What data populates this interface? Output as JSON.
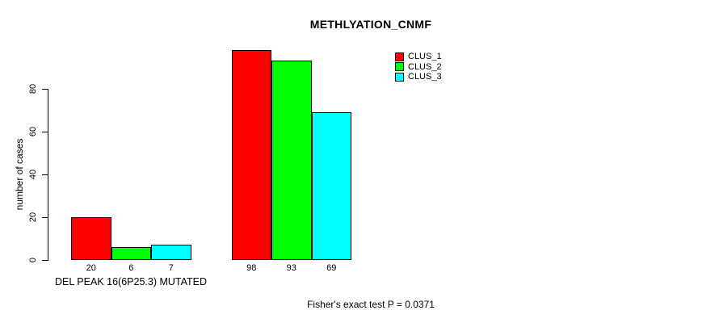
{
  "chart_data": {
    "type": "bar",
    "title": "METHLYATION_CNMF",
    "ylabel": "number of cases",
    "xlabel": "DEL PEAK 16(6P25.3) MUTATED",
    "footnote": "Fisher's exact test P = 0.0371",
    "ylim": [
      0,
      100
    ],
    "yticks": [
      0,
      20,
      40,
      60,
      80
    ],
    "grid": false,
    "legend_position": "inside-top-right",
    "series": [
      {
        "name": "CLUS_1",
        "color": "#ff0000",
        "values": [
          20,
          98
        ]
      },
      {
        "name": "CLUS_2",
        "color": "#00ff00",
        "values": [
          6,
          93
        ]
      },
      {
        "name": "CLUS_3",
        "color": "#00ffff",
        "values": [
          7,
          69
        ]
      }
    ],
    "groups": [
      {
        "bar_labels": [
          "20",
          "6",
          "7"
        ]
      },
      {
        "bar_labels": [
          "98",
          "93",
          "69"
        ]
      }
    ]
  }
}
